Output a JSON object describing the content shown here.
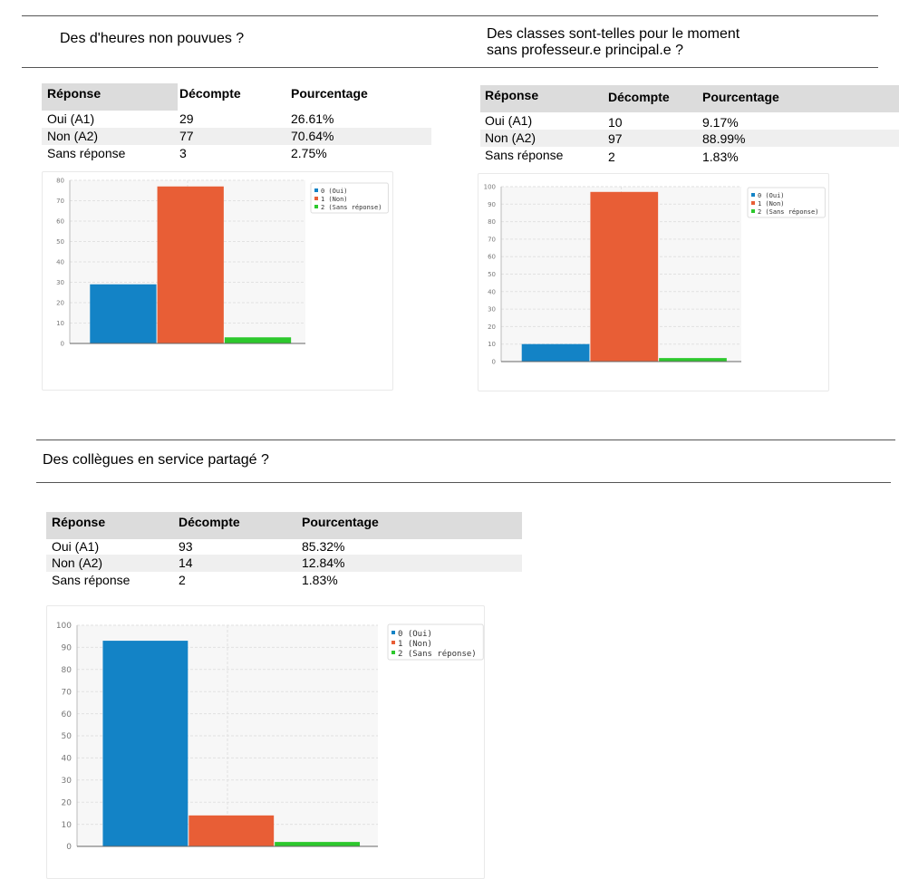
{
  "sections": [
    {
      "question": "Des d'heures non pouvues ?",
      "table": {
        "headers": [
          "Réponse",
          "Décompte",
          "Pourcentage"
        ],
        "rows": [
          [
            "Oui (A1)",
            "29",
            "26.61%"
          ],
          [
            "Non (A2)",
            "77",
            "70.64%"
          ],
          [
            "Sans réponse",
            "3",
            "2.75%"
          ]
        ]
      }
    },
    {
      "question": "Des classes sont-telles pour le moment\nsans professeur.e principal.e ?",
      "table": {
        "headers": [
          "Réponse",
          "Décompte",
          "Pourcentage"
        ],
        "rows": [
          [
            "Oui (A1)",
            "10",
            "9.17%"
          ],
          [
            "Non (A2)",
            "97",
            "88.99%"
          ],
          [
            "Sans réponse",
            "2",
            "1.83%"
          ]
        ]
      }
    },
    {
      "question": "Des collègues en service partagé ?",
      "table": {
        "headers": [
          "Réponse",
          "Décompte",
          "Pourcentage"
        ],
        "rows": [
          [
            "Oui (A1)",
            "93",
            "85.32%"
          ],
          [
            "Non (A2)",
            "14",
            "12.84%"
          ],
          [
            "Sans réponse",
            "2",
            "1.83%"
          ]
        ]
      }
    }
  ],
  "chart_data": [
    {
      "type": "bar",
      "categories": [
        "0 (Oui)",
        "1 (Non)",
        "2 (Sans réponse)"
      ],
      "values": [
        29,
        77,
        3
      ],
      "colors": [
        "#1383c6",
        "#e85e36",
        "#2dc82d"
      ],
      "ylim": [
        0,
        80
      ],
      "yticks": [
        0,
        10,
        20,
        30,
        40,
        50,
        60,
        70,
        80
      ],
      "legend": "top-right",
      "grid": true
    },
    {
      "type": "bar",
      "categories": [
        "0 (Oui)",
        "1 (Non)",
        "2 (Sans réponse)"
      ],
      "values": [
        10,
        97,
        2
      ],
      "colors": [
        "#1383c6",
        "#e85e36",
        "#2dc82d"
      ],
      "ylim": [
        0,
        100
      ],
      "yticks": [
        0,
        10,
        20,
        30,
        40,
        50,
        60,
        70,
        80,
        90,
        100
      ],
      "legend": "top-right",
      "grid": true
    },
    {
      "type": "bar",
      "categories": [
        "0 (Oui)",
        "1 (Non)",
        "2 (Sans réponse)"
      ],
      "values": [
        93,
        14,
        2
      ],
      "colors": [
        "#1383c6",
        "#e85e36",
        "#2dc82d"
      ],
      "ylim": [
        0,
        100
      ],
      "yticks": [
        0,
        10,
        20,
        30,
        40,
        50,
        60,
        70,
        80,
        90,
        100
      ],
      "legend": "top-right",
      "grid": true
    }
  ]
}
